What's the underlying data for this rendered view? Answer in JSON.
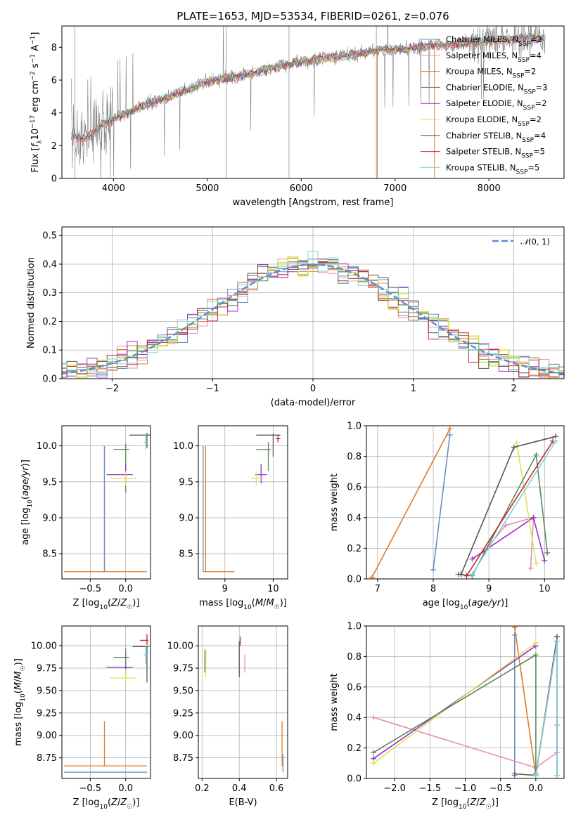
{
  "figure_title": "PLATE=1653, MJD=53534, FIBERID=0261, z=0.076",
  "series_colors": [
    "#6c8ebf",
    "#e88fb0",
    "#e07b28",
    "#5a8a5a",
    "#9b30c8",
    "#d7e65a",
    "#555555",
    "#c0272d",
    "#7fd3d8"
  ],
  "legend_entries": [
    {
      "pre": "Chabrier MILES, N",
      "sub": "SSP",
      "post": "=2",
      "color": "#6c8ebf"
    },
    {
      "pre": "Salpeter MILES, N",
      "sub": "SSP",
      "post": "=4",
      "color": "#e88fb0"
    },
    {
      "pre": "Kroupa MILES, N",
      "sub": "SSP",
      "post": "=2",
      "color": "#e07b28"
    },
    {
      "pre": "Chabrier ELODIE, N",
      "sub": "SSP",
      "post": "=3",
      "color": "#5a8a5a"
    },
    {
      "pre": "Salpeter ELODIE, N",
      "sub": "SSP",
      "post": "=2",
      "color": "#9b30c8"
    },
    {
      "pre": "Kroupa ELODIE, N",
      "sub": "SSP",
      "post": "=2",
      "color": "#d7e65a"
    },
    {
      "pre": "Chabrier STELIB, N",
      "sub": "SSP",
      "post": "=4",
      "color": "#555555"
    },
    {
      "pre": "Salpeter STELIB, N",
      "sub": "SSP",
      "post": "=5",
      "color": "#c0272d"
    },
    {
      "pre": "Kroupa STELIB, N",
      "sub": "SSP",
      "post": "=5",
      "color": "#7fd3d8"
    }
  ],
  "chart_data": [
    {
      "id": "spectrum",
      "type": "line",
      "xlabel": "wavelength [Angstrom, rest frame]",
      "ylabel": "Flux [f_λ 10^-17 erg cm^-2 s^-1 A^-1]",
      "xlim": [
        3450,
        8800
      ],
      "ylim": [
        0,
        9.3
      ],
      "xticks": [
        4000,
        5000,
        6000,
        7000,
        8000
      ],
      "yticks": [
        0,
        2,
        4,
        6,
        8
      ],
      "data_color": "#808080",
      "continuum_x": [
        3550,
        3700,
        3850,
        4000,
        4300,
        4600,
        5000,
        5300,
        5600,
        5900,
        6200,
        6500,
        6800,
        7100,
        7400,
        7700,
        8000,
        8300,
        8600
      ],
      "continuum_y": [
        2.6,
        2.4,
        3.2,
        3.6,
        4.4,
        5.0,
        5.9,
        6.2,
        6.6,
        7.0,
        7.3,
        7.5,
        7.8,
        7.9,
        8.1,
        8.2,
        8.4,
        8.5,
        8.6
      ],
      "grid": false,
      "legend_position": "top-right"
    },
    {
      "id": "residual-hist",
      "type": "step",
      "xlabel": "(data-model)/error",
      "ylabel": "Normed distribution",
      "xlim": [
        -2.5,
        2.5
      ],
      "ylim": [
        0,
        0.53
      ],
      "xticks": [
        -2,
        -1,
        0,
        1,
        2
      ],
      "yticks": [
        0.0,
        0.1,
        0.2,
        0.3,
        0.4,
        0.5
      ],
      "bin_width": 0.1,
      "gaussian_label": "N(0,1)",
      "gaussian_color": "#5b8fd6",
      "grid": true,
      "legend_position": "top-right"
    },
    {
      "id": "age-vs-Z",
      "type": "errorbar",
      "xlabel": "Z [log10(Z/Z☉)]",
      "ylabel": "age [log10(age/yr)]",
      "xlim": [
        -0.9,
        0.35
      ],
      "ylim": [
        8.15,
        10.28
      ],
      "xticks": [
        -0.5,
        0.0
      ],
      "yticks": [
        8.5,
        9.0,
        9.5,
        10.0
      ],
      "grid": true,
      "points": [
        {
          "x": -0.3,
          "y": 8.25,
          "xerr": [
            0.57,
            0.6
          ],
          "yerr": [
            0,
            1.75
          ],
          "color": "#e07b28"
        },
        {
          "x": -0.3,
          "y": 8.25,
          "xerr": [
            0,
            0
          ],
          "yerr": [
            0,
            1.75
          ],
          "color": "#6c8ebf"
        },
        {
          "x": 0.0,
          "y": 9.95,
          "xerr": [
            0.17,
            0.05
          ],
          "yerr": [
            0.6,
            0.08
          ],
          "color": "#5a8a5a"
        },
        {
          "x": 0.0,
          "y": 9.6,
          "xerr": [
            0.27,
            0.1
          ],
          "yerr": [
            0.15,
            0.15
          ],
          "color": "#9b30c8"
        },
        {
          "x": 0.0,
          "y": 9.55,
          "xerr": [
            0.22,
            0.15
          ],
          "yerr": [
            0.1,
            0.1
          ],
          "color": "#d7e65a"
        },
        {
          "x": 0.3,
          "y": 10.15,
          "xerr": [
            0.25,
            0.05
          ],
          "yerr": [
            0.18,
            0.03
          ],
          "color": "#555555"
        },
        {
          "x": 0.28,
          "y": 10.05,
          "xerr": [
            0.02,
            0.02
          ],
          "yerr": [
            0.1,
            0.1
          ],
          "color": "#7fd3d8"
        }
      ]
    },
    {
      "id": "age-vs-mass",
      "type": "errorbar",
      "xlabel": "mass [log10(M/M☉)]",
      "ylabel": "",
      "xlim": [
        8.45,
        10.3
      ],
      "ylim": [
        8.15,
        10.28
      ],
      "xticks": [
        9,
        10
      ],
      "yticks": [
        8.5,
        9.0,
        9.5,
        10.0
      ],
      "grid": true,
      "points": [
        {
          "x": 8.6,
          "y": 8.25,
          "xerr": [
            0,
            0.6
          ],
          "yerr": [
            0,
            1.75
          ],
          "color": "#e07b28"
        },
        {
          "x": 8.55,
          "y": 8.25,
          "xerr": [
            0,
            0.05
          ],
          "yerr": [
            0,
            1.75
          ],
          "color": "#6c8ebf"
        },
        {
          "x": 10.0,
          "y": 10.15,
          "xerr": [
            0.35,
            0.15
          ],
          "yerr": [
            0.3,
            0.02
          ],
          "color": "#555555"
        },
        {
          "x": 9.9,
          "y": 9.95,
          "xerr": [
            0.25,
            0.05
          ],
          "yerr": [
            0.3,
            0.1
          ],
          "color": "#5a8a5a"
        },
        {
          "x": 9.75,
          "y": 9.6,
          "xerr": [
            0.12,
            0.12
          ],
          "yerr": [
            0.12,
            0.15
          ],
          "color": "#9b30c8"
        },
        {
          "x": 9.65,
          "y": 9.55,
          "xerr": [
            0.1,
            0.15
          ],
          "yerr": [
            0.1,
            0.1
          ],
          "color": "#d7e65a"
        },
        {
          "x": 10.1,
          "y": 10.1,
          "xerr": [
            0.05,
            0.05
          ],
          "yerr": [
            0.05,
            0.05
          ],
          "color": "#c0272d"
        }
      ]
    },
    {
      "id": "weight-vs-age",
      "type": "line",
      "xlabel": "age [log10(age/yr)]",
      "ylabel": "mass weight",
      "xlim": [
        6.8,
        10.35
      ],
      "ylim": [
        0,
        1
      ],
      "xticks": [
        7,
        8,
        9,
        10
      ],
      "yticks": [
        0.0,
        0.2,
        0.4,
        0.6,
        0.8,
        1.0
      ],
      "grid": true,
      "series": [
        {
          "color": "#e07b28",
          "x": [
            6.9,
            8.3
          ],
          "y": [
            0.01,
            0.98
          ]
        },
        {
          "color": "#6c8ebf",
          "x": [
            8.0,
            8.3
          ],
          "y": [
            0.06,
            0.94
          ]
        },
        {
          "color": "#e88fb0",
          "x": [
            8.9,
            9.3,
            9.8,
            9.75
          ],
          "y": [
            0.17,
            0.35,
            0.4,
            0.07
          ]
        },
        {
          "color": "#9b30c8",
          "x": [
            8.7,
            9.8,
            10.0
          ],
          "y": [
            0.13,
            0.4,
            0.12
          ]
        },
        {
          "color": "#d7e65a",
          "x": [
            9.5,
            9.85
          ],
          "y": [
            0.89,
            0.1
          ]
        },
        {
          "color": "#5a8a5a",
          "x": [
            8.45,
            8.7,
            9.85,
            10.05
          ],
          "y": [
            0.03,
            0.02,
            0.81,
            0.17
          ]
        },
        {
          "color": "#555555",
          "x": [
            8.5,
            9.45,
            10.2
          ],
          "y": [
            0.03,
            0.86,
            0.93
          ]
        },
        {
          "color": "#c0272d",
          "x": [
            8.6,
            10.15
          ],
          "y": [
            0.02,
            0.9
          ]
        },
        {
          "color": "#7fd3d8",
          "x": [
            8.7,
            10.2
          ],
          "y": [
            0.03,
            0.9
          ]
        }
      ]
    },
    {
      "id": "mass-vs-Z",
      "type": "errorbar",
      "xlabel": "Z [log10(Z/Z☉)]",
      "ylabel": "mass [log10(M/M☉)]",
      "xlim": [
        -0.9,
        0.35
      ],
      "ylim": [
        8.52,
        10.22
      ],
      "xticks": [
        -0.5,
        0.0
      ],
      "yticks": [
        8.75,
        9.0,
        9.25,
        9.5,
        9.75,
        10.0
      ],
      "grid": true,
      "points": [
        {
          "x": -0.3,
          "y": 8.66,
          "xerr": [
            0.57,
            0.6
          ],
          "yerr": [
            0,
            0.5
          ],
          "color": "#e07b28"
        },
        {
          "x": -0.3,
          "y": 8.59,
          "xerr": [
            0.57,
            0.6
          ],
          "yerr": [
            0,
            0
          ],
          "color": "#6c8ebf"
        },
        {
          "x": 0.0,
          "y": 9.76,
          "xerr": [
            0.27,
            0.1
          ],
          "yerr": [
            0.1,
            0.15
          ],
          "color": "#9b30c8"
        },
        {
          "x": 0.0,
          "y": 9.64,
          "xerr": [
            0.22,
            0.15
          ],
          "yerr": [
            0.05,
            0.1
          ],
          "color": "#d7e65a"
        },
        {
          "x": 0.0,
          "y": 9.87,
          "xerr": [
            0.17,
            0.05
          ],
          "yerr": [
            0.1,
            0.1
          ],
          "color": "#5a8a5a"
        },
        {
          "x": 0.3,
          "y": 9.99,
          "xerr": [
            0.2,
            0.03
          ],
          "yerr": [
            0.4,
            0.0
          ],
          "color": "#555555"
        },
        {
          "x": 0.3,
          "y": 10.06,
          "xerr": [
            0.1,
            0.02
          ],
          "yerr": [
            0.05,
            0.07
          ],
          "color": "#c0272d"
        },
        {
          "x": 0.28,
          "y": 9.9,
          "xerr": [
            0.02,
            0.02
          ],
          "yerr": [
            0.1,
            0.1
          ],
          "color": "#7fd3d8"
        }
      ]
    },
    {
      "id": "mass-vs-ebv",
      "type": "errorbar",
      "xlabel": "E(B-V)",
      "ylabel": "",
      "xlim": [
        0.18,
        0.66
      ],
      "ylim": [
        8.52,
        10.22
      ],
      "xticks": [
        0.2,
        0.4,
        0.6
      ],
      "yticks": [
        8.75,
        9.0,
        9.25,
        9.5,
        9.75,
        10.0
      ],
      "grid": true,
      "points": [
        {
          "x": 0.22,
          "y": 9.85,
          "xerr": [
            0,
            0
          ],
          "yerr": [
            0.2,
            0.12
          ],
          "color": "#d7e65a"
        },
        {
          "x": 0.215,
          "y": 9.85,
          "xerr": [
            0,
            0
          ],
          "yerr": [
            0.15,
            0.1
          ],
          "color": "#5a8a5a"
        },
        {
          "x": 0.4,
          "y": 9.9,
          "xerr": [
            0,
            0
          ],
          "yerr": [
            0.25,
            0.15
          ],
          "color": "#555555"
        },
        {
          "x": 0.405,
          "y": 10.05,
          "xerr": [
            0,
            0
          ],
          "yerr": [
            0.05,
            0.05
          ],
          "color": "#c0272d"
        },
        {
          "x": 0.43,
          "y": 9.8,
          "xerr": [
            0,
            0
          ],
          "yerr": [
            0.1,
            0.1
          ],
          "color": "#e88fb0"
        },
        {
          "x": 0.63,
          "y": 8.66,
          "xerr": [
            0,
            0
          ],
          "yerr": [
            0,
            0.5
          ],
          "color": "#e07b28"
        },
        {
          "x": 0.635,
          "y": 8.59,
          "xerr": [
            0,
            0
          ],
          "yerr": [
            0,
            0.2
          ],
          "color": "#6c8ebf"
        }
      ]
    },
    {
      "id": "weight-vs-Z",
      "type": "line",
      "xlabel": "Z [log10(Z/Z☉)]",
      "ylabel": "mass weight",
      "xlim": [
        -2.4,
        0.4
      ],
      "ylim": [
        0,
        1
      ],
      "xticks": [
        -2.0,
        -1.5,
        -1.0,
        -0.5,
        0.0
      ],
      "yticks": [
        0.0,
        0.2,
        0.4,
        0.6,
        0.8,
        1.0
      ],
      "grid": true,
      "series": [
        {
          "color": "#e07b28",
          "x": [
            -0.3,
            0.0
          ],
          "y": [
            0.99,
            0.02
          ]
        },
        {
          "color": "#6c8ebf",
          "x": [
            -0.3,
            -0.3
          ],
          "y": [
            0.94,
            0.02
          ]
        },
        {
          "color": "#e88fb0",
          "x": [
            -2.3,
            0.0,
            0.3,
            0.3
          ],
          "y": [
            0.4,
            0.07,
            0.17,
            0.35
          ]
        },
        {
          "color": "#9b30c8",
          "x": [
            -2.3,
            0.0
          ],
          "y": [
            0.13,
            0.87
          ]
        },
        {
          "color": "#d7e65a",
          "x": [
            -2.3,
            0.0
          ],
          "y": [
            0.1,
            0.89
          ]
        },
        {
          "color": "#5a8a5a",
          "x": [
            -2.3,
            0.0,
            0.0
          ],
          "y": [
            0.17,
            0.81,
            0.03
          ]
        },
        {
          "color": "#555555",
          "x": [
            -0.3,
            0.0,
            0.3,
            0.3
          ],
          "y": [
            0.03,
            0.02,
            0.93,
            0.02
          ]
        },
        {
          "color": "#c0272d",
          "x": [
            0.0,
            0.3
          ],
          "y": [
            0.02,
            0.9
          ]
        },
        {
          "color": "#7fd3d8",
          "x": [
            0.0,
            0.3,
            0.3
          ],
          "y": [
            0.02,
            0.9,
            0.02
          ]
        }
      ]
    }
  ]
}
